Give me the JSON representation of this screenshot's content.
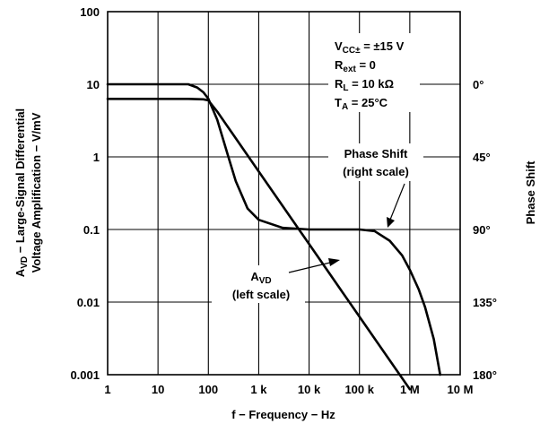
{
  "chart_data": {
    "type": "line",
    "title": "",
    "xlabel": "f − Frequency − Hz",
    "ylabel_left": [
      "A",
      "VD",
      " − Large-Signal Differential"
    ],
    "ylabel_left_line2": "Voltage Amplification − V/mV",
    "ylabel_right": "Phase Shift",
    "x_scale": "log",
    "xlim": [
      1,
      10000000
    ],
    "y_left_scale": "log",
    "y_left_lim": [
      0.001,
      100
    ],
    "y_right_lim": [
      180,
      -45
    ],
    "x_ticks": [
      {
        "value": 1,
        "label": "1"
      },
      {
        "value": 10,
        "label": "10"
      },
      {
        "value": 100,
        "label": "100"
      },
      {
        "value": 1000,
        "label": "1 k"
      },
      {
        "value": 10000,
        "label": "10 k"
      },
      {
        "value": 100000,
        "label": "100 k"
      },
      {
        "value": 1000000,
        "label": "1 M"
      },
      {
        "value": 10000000,
        "label": "10 M"
      }
    ],
    "y_left_ticks": [
      {
        "value": 100,
        "label": "100"
      },
      {
        "value": 10,
        "label": "10"
      },
      {
        "value": 1,
        "label": "1"
      },
      {
        "value": 0.1,
        "label": "0.1"
      },
      {
        "value": 0.01,
        "label": "0.01"
      },
      {
        "value": 0.001,
        "label": "0.001"
      }
    ],
    "y_right_ticks": [
      {
        "value": 0,
        "label": "0°"
      },
      {
        "value": 45,
        "label": "45°"
      },
      {
        "value": 90,
        "label": "90°"
      },
      {
        "value": 135,
        "label": "135°"
      },
      {
        "value": 180,
        "label": "180°"
      }
    ],
    "grid": true,
    "series": [
      {
        "axis": "left",
        "x": [
          1,
          10,
          40,
          80,
          100,
          150,
          300,
          1000,
          10000,
          100000,
          1000000
        ],
        "y": [
          6.3,
          6.3,
          6.3,
          6.2,
          6.0,
          4.2,
          2.1,
          0.63,
          0.063,
          0.0063,
          0.00063
        ]
      },
      {
        "axis": "right",
        "x": [
          1,
          10,
          40,
          60,
          80,
          100,
          150,
          250,
          350,
          600,
          1000,
          3000,
          10000,
          30000,
          100000,
          200000,
          400000,
          700000,
          1000000,
          1500000,
          2000000,
          3000000,
          4000000
        ],
        "y": [
          0,
          0,
          0,
          2,
          5,
          9,
          22,
          45,
          60,
          77,
          84,
          89,
          90,
          90,
          90,
          91,
          97,
          106,
          115,
          127,
          138,
          158,
          180
        ]
      }
    ],
    "annotations": {
      "conditions": [
        {
          "main": "V",
          "sub": "CC±",
          "rest": " = ±15 V"
        },
        {
          "main": "R",
          "sub": "ext",
          "rest": " = 0"
        },
        {
          "main": "R",
          "sub": "L",
          "rest": " = 10 kΩ"
        },
        {
          "main": "T",
          "sub": "A",
          "rest": " = 25°C"
        }
      ],
      "phase_label": [
        "Phase Shift",
        "(right scale)"
      ],
      "avd_label": {
        "main": "A",
        "sub": "VD",
        "line2": "(left scale)"
      }
    }
  }
}
